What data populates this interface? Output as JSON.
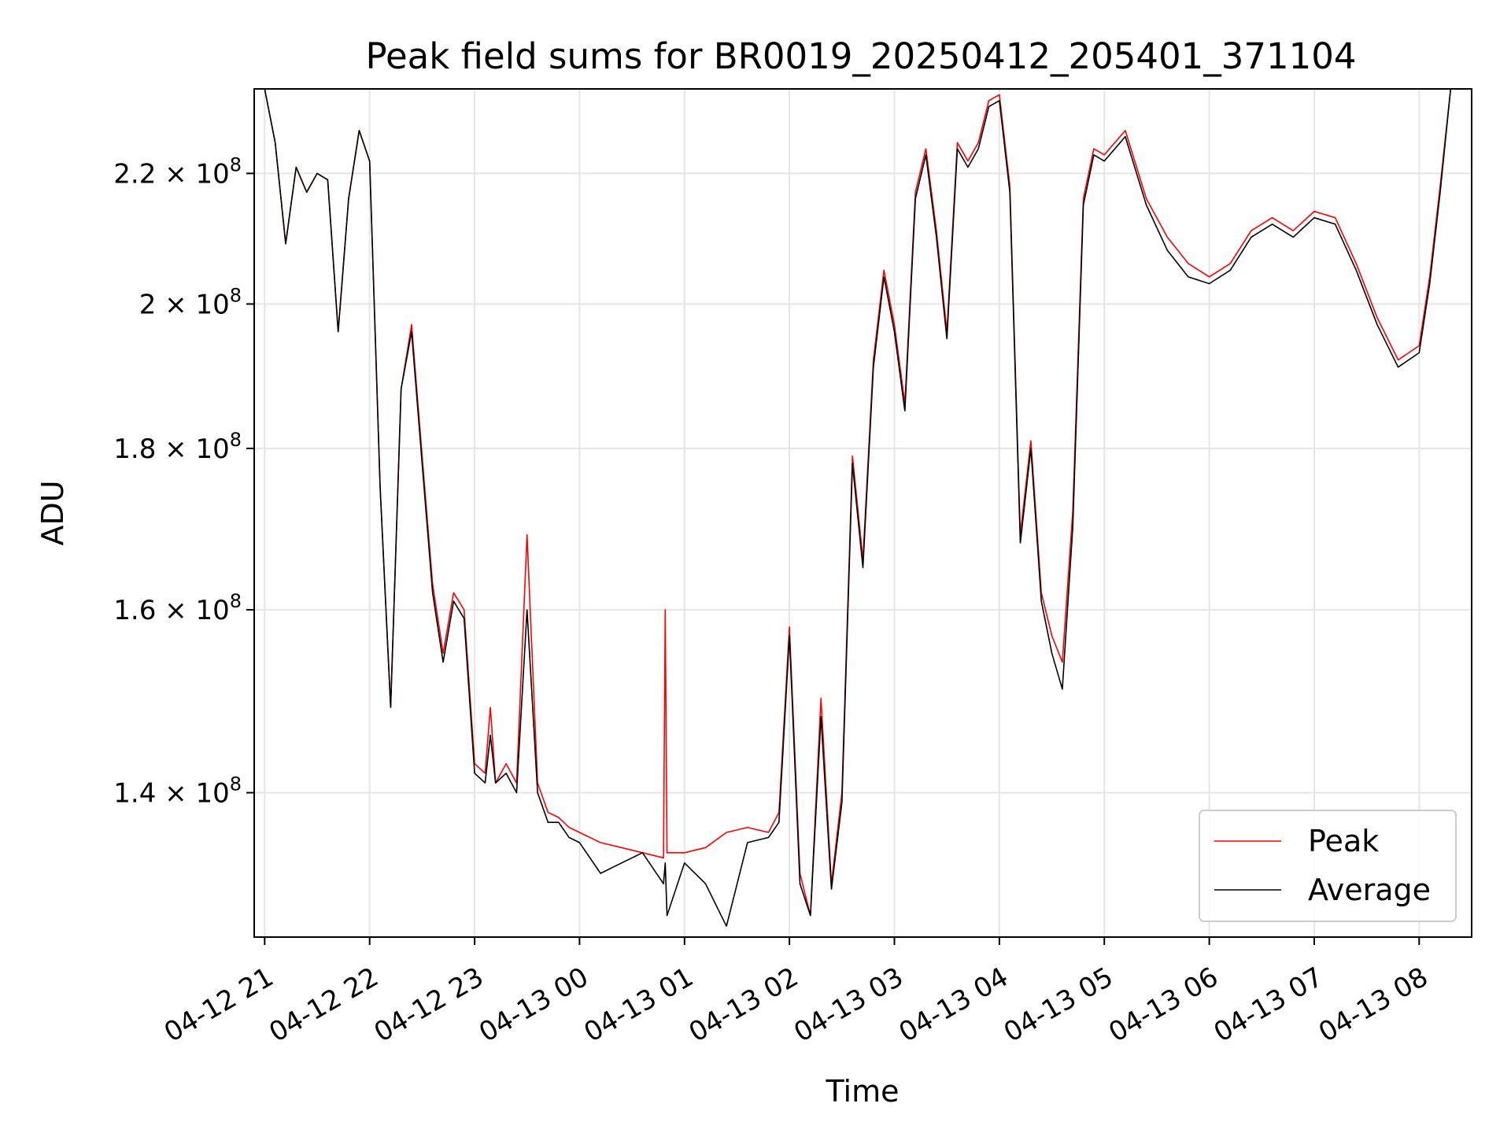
{
  "chart_data": {
    "type": "line",
    "title": "Peak field sums for BR0019_20250412_205401_371104",
    "xlabel": "Time",
    "ylabel": "ADU",
    "y_scale": "log",
    "ylim": [
      126000000,
      234000000
    ],
    "xlim": [
      "2025-04-12 20:54",
      "2025-04-13 08:30"
    ],
    "grid": true,
    "legend_position": "lower-right",
    "x_ticks": [
      {
        "label": "04-12 21",
        "value": "2025-04-12 21:00"
      },
      {
        "label": "04-12 22",
        "value": "2025-04-12 22:00"
      },
      {
        "label": "04-12 23",
        "value": "2025-04-12 23:00"
      },
      {
        "label": "04-13 00",
        "value": "2025-04-13 00:00"
      },
      {
        "label": "04-13 01",
        "value": "2025-04-13 01:00"
      },
      {
        "label": "04-13 02",
        "value": "2025-04-13 02:00"
      },
      {
        "label": "04-13 03",
        "value": "2025-04-13 03:00"
      },
      {
        "label": "04-13 04",
        "value": "2025-04-13 04:00"
      },
      {
        "label": "04-13 05",
        "value": "2025-04-13 05:00"
      },
      {
        "label": "04-13 06",
        "value": "2025-04-13 06:00"
      },
      {
        "label": "04-13 07",
        "value": "2025-04-13 07:00"
      },
      {
        "label": "04-13 08",
        "value": "2025-04-13 08:00"
      }
    ],
    "y_ticks": [
      {
        "mantissa": "1.4",
        "exponent": "8",
        "value": 140000000
      },
      {
        "mantissa": "1.6",
        "exponent": "8",
        "value": 160000000
      },
      {
        "mantissa": "1.8",
        "exponent": "8",
        "value": 180000000
      },
      {
        "mantissa": "2",
        "exponent": "8",
        "value": 200000000
      },
      {
        "mantissa": "2.2",
        "exponent": "8",
        "value": 220000000
      }
    ],
    "series": [
      {
        "name": "Peak",
        "color": "#ff0000",
        "x": [
          "2025-04-12 20:54",
          "2025-04-12 21:00",
          "2025-04-12 21:06",
          "2025-04-12 21:12",
          "2025-04-12 21:18",
          "2025-04-12 21:24",
          "2025-04-12 21:30",
          "2025-04-12 21:36",
          "2025-04-12 21:42",
          "2025-04-12 21:48",
          "2025-04-12 21:54",
          "2025-04-12 22:00",
          "2025-04-12 22:06",
          "2025-04-12 22:12",
          "2025-04-12 22:18",
          "2025-04-12 22:24",
          "2025-04-12 22:30",
          "2025-04-12 22:36",
          "2025-04-12 22:42",
          "2025-04-12 22:48",
          "2025-04-12 22:54",
          "2025-04-12 23:00",
          "2025-04-12 23:06",
          "2025-04-12 23:09",
          "2025-04-12 23:12",
          "2025-04-12 23:18",
          "2025-04-12 23:24",
          "2025-04-12 23:30",
          "2025-04-12 23:36",
          "2025-04-12 23:42",
          "2025-04-12 23:48",
          "2025-04-12 23:54",
          "2025-04-13 00:00",
          "2025-04-13 00:12",
          "2025-04-13 00:24",
          "2025-04-13 00:36",
          "2025-04-13 00:48",
          "2025-04-13 00:49",
          "2025-04-13 00:50",
          "2025-04-13 01:00",
          "2025-04-13 01:12",
          "2025-04-13 01:24",
          "2025-04-13 01:36",
          "2025-04-13 01:48",
          "2025-04-13 01:54",
          "2025-04-13 02:00",
          "2025-04-13 02:06",
          "2025-04-13 02:12",
          "2025-04-13 02:18",
          "2025-04-13 02:24",
          "2025-04-13 02:30",
          "2025-04-13 02:36",
          "2025-04-13 02:42",
          "2025-04-13 02:48",
          "2025-04-13 02:54",
          "2025-04-13 03:00",
          "2025-04-13 03:06",
          "2025-04-13 03:12",
          "2025-04-13 03:18",
          "2025-04-13 03:24",
          "2025-04-13 03:30",
          "2025-04-13 03:36",
          "2025-04-13 03:42",
          "2025-04-13 03:48",
          "2025-04-13 03:54",
          "2025-04-13 04:00",
          "2025-04-13 04:06",
          "2025-04-13 04:12",
          "2025-04-13 04:18",
          "2025-04-13 04:24",
          "2025-04-13 04:30",
          "2025-04-13 04:36",
          "2025-04-13 04:42",
          "2025-04-13 04:48",
          "2025-04-13 04:54",
          "2025-04-13 05:00",
          "2025-04-13 05:12",
          "2025-04-13 05:24",
          "2025-04-13 05:36",
          "2025-04-13 05:48",
          "2025-04-13 06:00",
          "2025-04-13 06:12",
          "2025-04-13 06:24",
          "2025-04-13 06:36",
          "2025-04-13 06:48",
          "2025-04-13 07:00",
          "2025-04-13 07:12",
          "2025-04-13 07:24",
          "2025-04-13 07:36",
          "2025-04-13 07:48",
          "2025-04-13 08:00",
          "2025-04-13 08:06",
          "2025-04-13 08:12",
          "2025-04-13 08:18",
          "2025-04-13 08:24",
          "2025-04-13 08:30"
        ],
        "y": [
          234000000,
          234000000,
          225000000,
          209000000,
          221000000,
          217000000,
          220000000,
          219000000,
          196000000,
          216000000,
          227000000,
          222000000,
          175000000,
          149000000,
          188000000,
          197000000,
          179000000,
          163000000,
          155000000,
          162000000,
          160000000,
          143000000,
          142000000,
          149000000,
          141000000,
          143000000,
          141000000,
          169000000,
          141000000,
          138000000,
          137500000,
          136500000,
          136000000,
          135000000,
          134500000,
          134000000,
          133500000,
          160000000,
          134000000,
          134000000,
          134500000,
          136000000,
          136500000,
          136000000,
          138000000,
          158000000,
          132000000,
          128000000,
          150000000,
          131000000,
          140000000,
          179000000,
          166000000,
          192000000,
          205000000,
          197000000,
          186000000,
          217000000,
          224000000,
          211000000,
          196000000,
          225000000,
          222000000,
          225000000,
          232000000,
          233000000,
          218000000,
          169000000,
          181000000,
          162000000,
          157000000,
          154000000,
          172000000,
          216000000,
          224000000,
          223000000,
          227000000,
          216000000,
          210000000,
          206000000,
          204000000,
          206000000,
          211000000,
          213000000,
          211000000,
          214000000,
          213000000,
          206000000,
          198000000,
          192000000,
          194000000,
          204000000,
          218000000,
          234000000,
          234000000,
          234000000
        ]
      },
      {
        "name": "Average",
        "color": "#000000",
        "x": [
          "2025-04-12 20:54",
          "2025-04-12 21:00",
          "2025-04-12 21:06",
          "2025-04-12 21:12",
          "2025-04-12 21:18",
          "2025-04-12 21:24",
          "2025-04-12 21:30",
          "2025-04-12 21:36",
          "2025-04-12 21:42",
          "2025-04-12 21:48",
          "2025-04-12 21:54",
          "2025-04-12 22:00",
          "2025-04-12 22:06",
          "2025-04-12 22:12",
          "2025-04-12 22:18",
          "2025-04-12 22:24",
          "2025-04-12 22:30",
          "2025-04-12 22:36",
          "2025-04-12 22:42",
          "2025-04-12 22:48",
          "2025-04-12 22:54",
          "2025-04-12 23:00",
          "2025-04-12 23:06",
          "2025-04-12 23:09",
          "2025-04-12 23:12",
          "2025-04-12 23:18",
          "2025-04-12 23:24",
          "2025-04-12 23:30",
          "2025-04-12 23:36",
          "2025-04-12 23:42",
          "2025-04-12 23:48",
          "2025-04-12 23:54",
          "2025-04-13 00:00",
          "2025-04-13 00:12",
          "2025-04-13 00:24",
          "2025-04-13 00:36",
          "2025-04-13 00:48",
          "2025-04-13 00:49",
          "2025-04-13 00:50",
          "2025-04-13 01:00",
          "2025-04-13 01:12",
          "2025-04-13 01:24",
          "2025-04-13 01:36",
          "2025-04-13 01:48",
          "2025-04-13 01:54",
          "2025-04-13 02:00",
          "2025-04-13 02:06",
          "2025-04-13 02:12",
          "2025-04-13 02:18",
          "2025-04-13 02:24",
          "2025-04-13 02:30",
          "2025-04-13 02:36",
          "2025-04-13 02:42",
          "2025-04-13 02:48",
          "2025-04-13 02:54",
          "2025-04-13 03:00",
          "2025-04-13 03:06",
          "2025-04-13 03:12",
          "2025-04-13 03:18",
          "2025-04-13 03:24",
          "2025-04-13 03:30",
          "2025-04-13 03:36",
          "2025-04-13 03:42",
          "2025-04-13 03:48",
          "2025-04-13 03:54",
          "2025-04-13 04:00",
          "2025-04-13 04:06",
          "2025-04-13 04:12",
          "2025-04-13 04:18",
          "2025-04-13 04:24",
          "2025-04-13 04:30",
          "2025-04-13 04:36",
          "2025-04-13 04:42",
          "2025-04-13 04:48",
          "2025-04-13 04:54",
          "2025-04-13 05:00",
          "2025-04-13 05:12",
          "2025-04-13 05:24",
          "2025-04-13 05:36",
          "2025-04-13 05:48",
          "2025-04-13 06:00",
          "2025-04-13 06:12",
          "2025-04-13 06:24",
          "2025-04-13 06:36",
          "2025-04-13 06:48",
          "2025-04-13 07:00",
          "2025-04-13 07:12",
          "2025-04-13 07:24",
          "2025-04-13 07:36",
          "2025-04-13 07:48",
          "2025-04-13 08:00",
          "2025-04-13 08:06",
          "2025-04-13 08:12",
          "2025-04-13 08:18",
          "2025-04-13 08:24",
          "2025-04-13 08:30"
        ],
        "y": [
          234000000,
          234000000,
          225000000,
          209000000,
          221000000,
          217000000,
          220000000,
          219000000,
          196000000,
          216000000,
          227000000,
          222000000,
          175000000,
          149000000,
          188000000,
          196000000,
          178000000,
          162000000,
          154000000,
          161000000,
          159000000,
          142000000,
          141000000,
          146000000,
          141000000,
          142000000,
          140000000,
          160000000,
          140000000,
          137000000,
          137000000,
          135500000,
          135000000,
          132000000,
          133000000,
          134000000,
          131000000,
          133000000,
          128000000,
          133000000,
          131000000,
          127000000,
          135000000,
          135500000,
          137000000,
          157000000,
          131000000,
          128000000,
          148000000,
          130500000,
          139000000,
          178000000,
          165000000,
          191000000,
          204000000,
          196000000,
          185000000,
          216000000,
          223000000,
          210000000,
          195000000,
          224000000,
          221000000,
          224000000,
          231000000,
          232000000,
          217000000,
          168000000,
          180000000,
          161000000,
          155000000,
          151000000,
          170000000,
          215000000,
          223000000,
          222000000,
          226000000,
          215000000,
          208000000,
          204000000,
          203000000,
          205000000,
          210000000,
          212000000,
          210000000,
          213000000,
          212000000,
          205000000,
          197000000,
          191000000,
          193000000,
          203000000,
          217000000,
          234000000,
          234000000,
          234000000
        ]
      }
    ]
  }
}
